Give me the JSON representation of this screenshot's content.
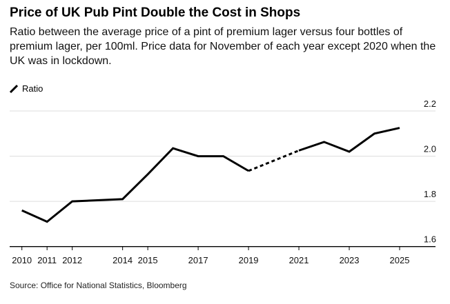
{
  "title": "Price of UK Pub Pint Double the Cost in Shops",
  "subtitle": "Ratio between the average price of a pint of premium lager versus four bottles of premium lager, per 100ml. Price data for November of each year except 2020 when the UK was in lockdown.",
  "source": "Source: Office for National Statistics, Bloomberg",
  "chart_data": {
    "type": "line",
    "legend": [
      {
        "name": "Ratio",
        "position": "top-left"
      }
    ],
    "x": [
      2010,
      2011,
      2012,
      2013,
      2014,
      2015,
      2016,
      2017,
      2018,
      2019,
      2021,
      2022,
      2023,
      2024,
      2025
    ],
    "series": [
      {
        "name": "Ratio",
        "values": [
          1.76,
          1.71,
          1.8,
          1.805,
          1.81,
          1.92,
          2.035,
          2.0,
          2.0,
          1.935,
          2.025,
          2.063,
          2.02,
          2.1,
          2.125
        ]
      }
    ],
    "gap": {
      "from": 2019,
      "to": 2021,
      "style": "dashed"
    },
    "xticks": [
      "2010",
      "2011",
      "2012",
      "2014",
      "2015",
      "2017",
      "2019",
      "2021",
      "2023",
      "2025"
    ],
    "yticks": [
      "1.6",
      "1.8",
      "2.0",
      "2.2"
    ],
    "ylim": [
      1.6,
      2.2
    ],
    "xlim": [
      2010,
      2025
    ],
    "grid": true,
    "xlabel": "",
    "ylabel": ""
  }
}
